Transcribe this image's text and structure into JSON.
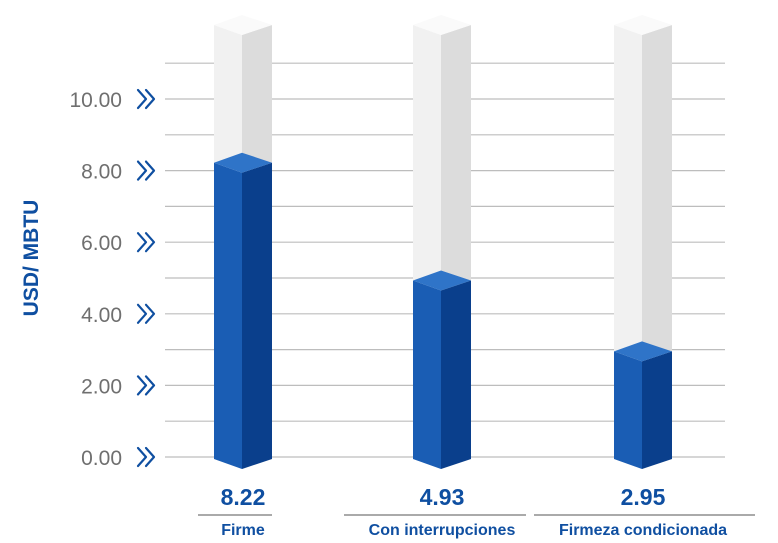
{
  "chart_data": {
    "type": "bar",
    "categories": [
      "Firme",
      "Con interrupciones",
      "Firmeza condicionada"
    ],
    "values": [
      8.22,
      4.93,
      2.95
    ],
    "value_labels": [
      "8.22",
      "4.93",
      "2.95"
    ],
    "title": "",
    "xlabel": "",
    "ylabel": "USD/ MBTU",
    "ylim": [
      0,
      12
    ],
    "yticks": [
      0,
      2,
      4,
      6,
      8,
      10
    ],
    "ytick_labels": [
      "0.00",
      "2.00",
      "4.00",
      "6.00",
      "8.00",
      "10.00"
    ],
    "grid": true,
    "colors": {
      "bar_front": "#1a5db4",
      "bar_side": "#0a3f8c",
      "bar_top": "#2f74c8",
      "ghost_front": "#f1f1f1",
      "ghost_side": "#dcdcdc",
      "ghost_top": "#fafafa",
      "gridline": "#bdbdbd",
      "text": "#0f4fa1",
      "tick_text": "#6f6f6f"
    }
  }
}
